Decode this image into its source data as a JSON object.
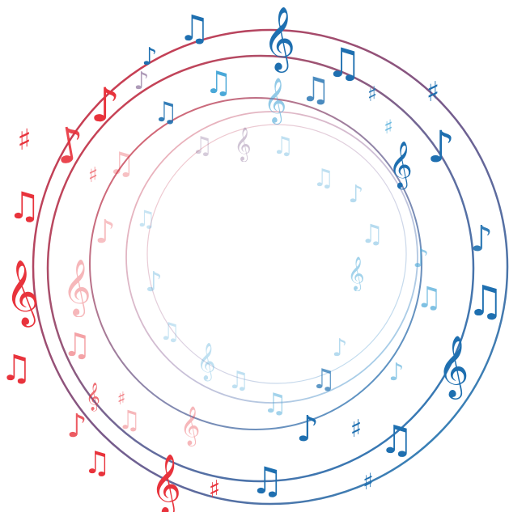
{
  "artwork": {
    "subject": "swirl-of-music-notes",
    "palette": {
      "red": "#e8333c",
      "violet": "#7a5a8a",
      "blue": "#1e6fb0",
      "light_blue": "#4aa8d8",
      "background": "#ffffff"
    },
    "glyph_set": {
      "treble": "𝄞",
      "sharp": "♯",
      "eighth": "♪",
      "beamed": "♫",
      "beamed_sixteenth": "♬",
      "quarter": "♩",
      "flat": "♭"
    }
  }
}
